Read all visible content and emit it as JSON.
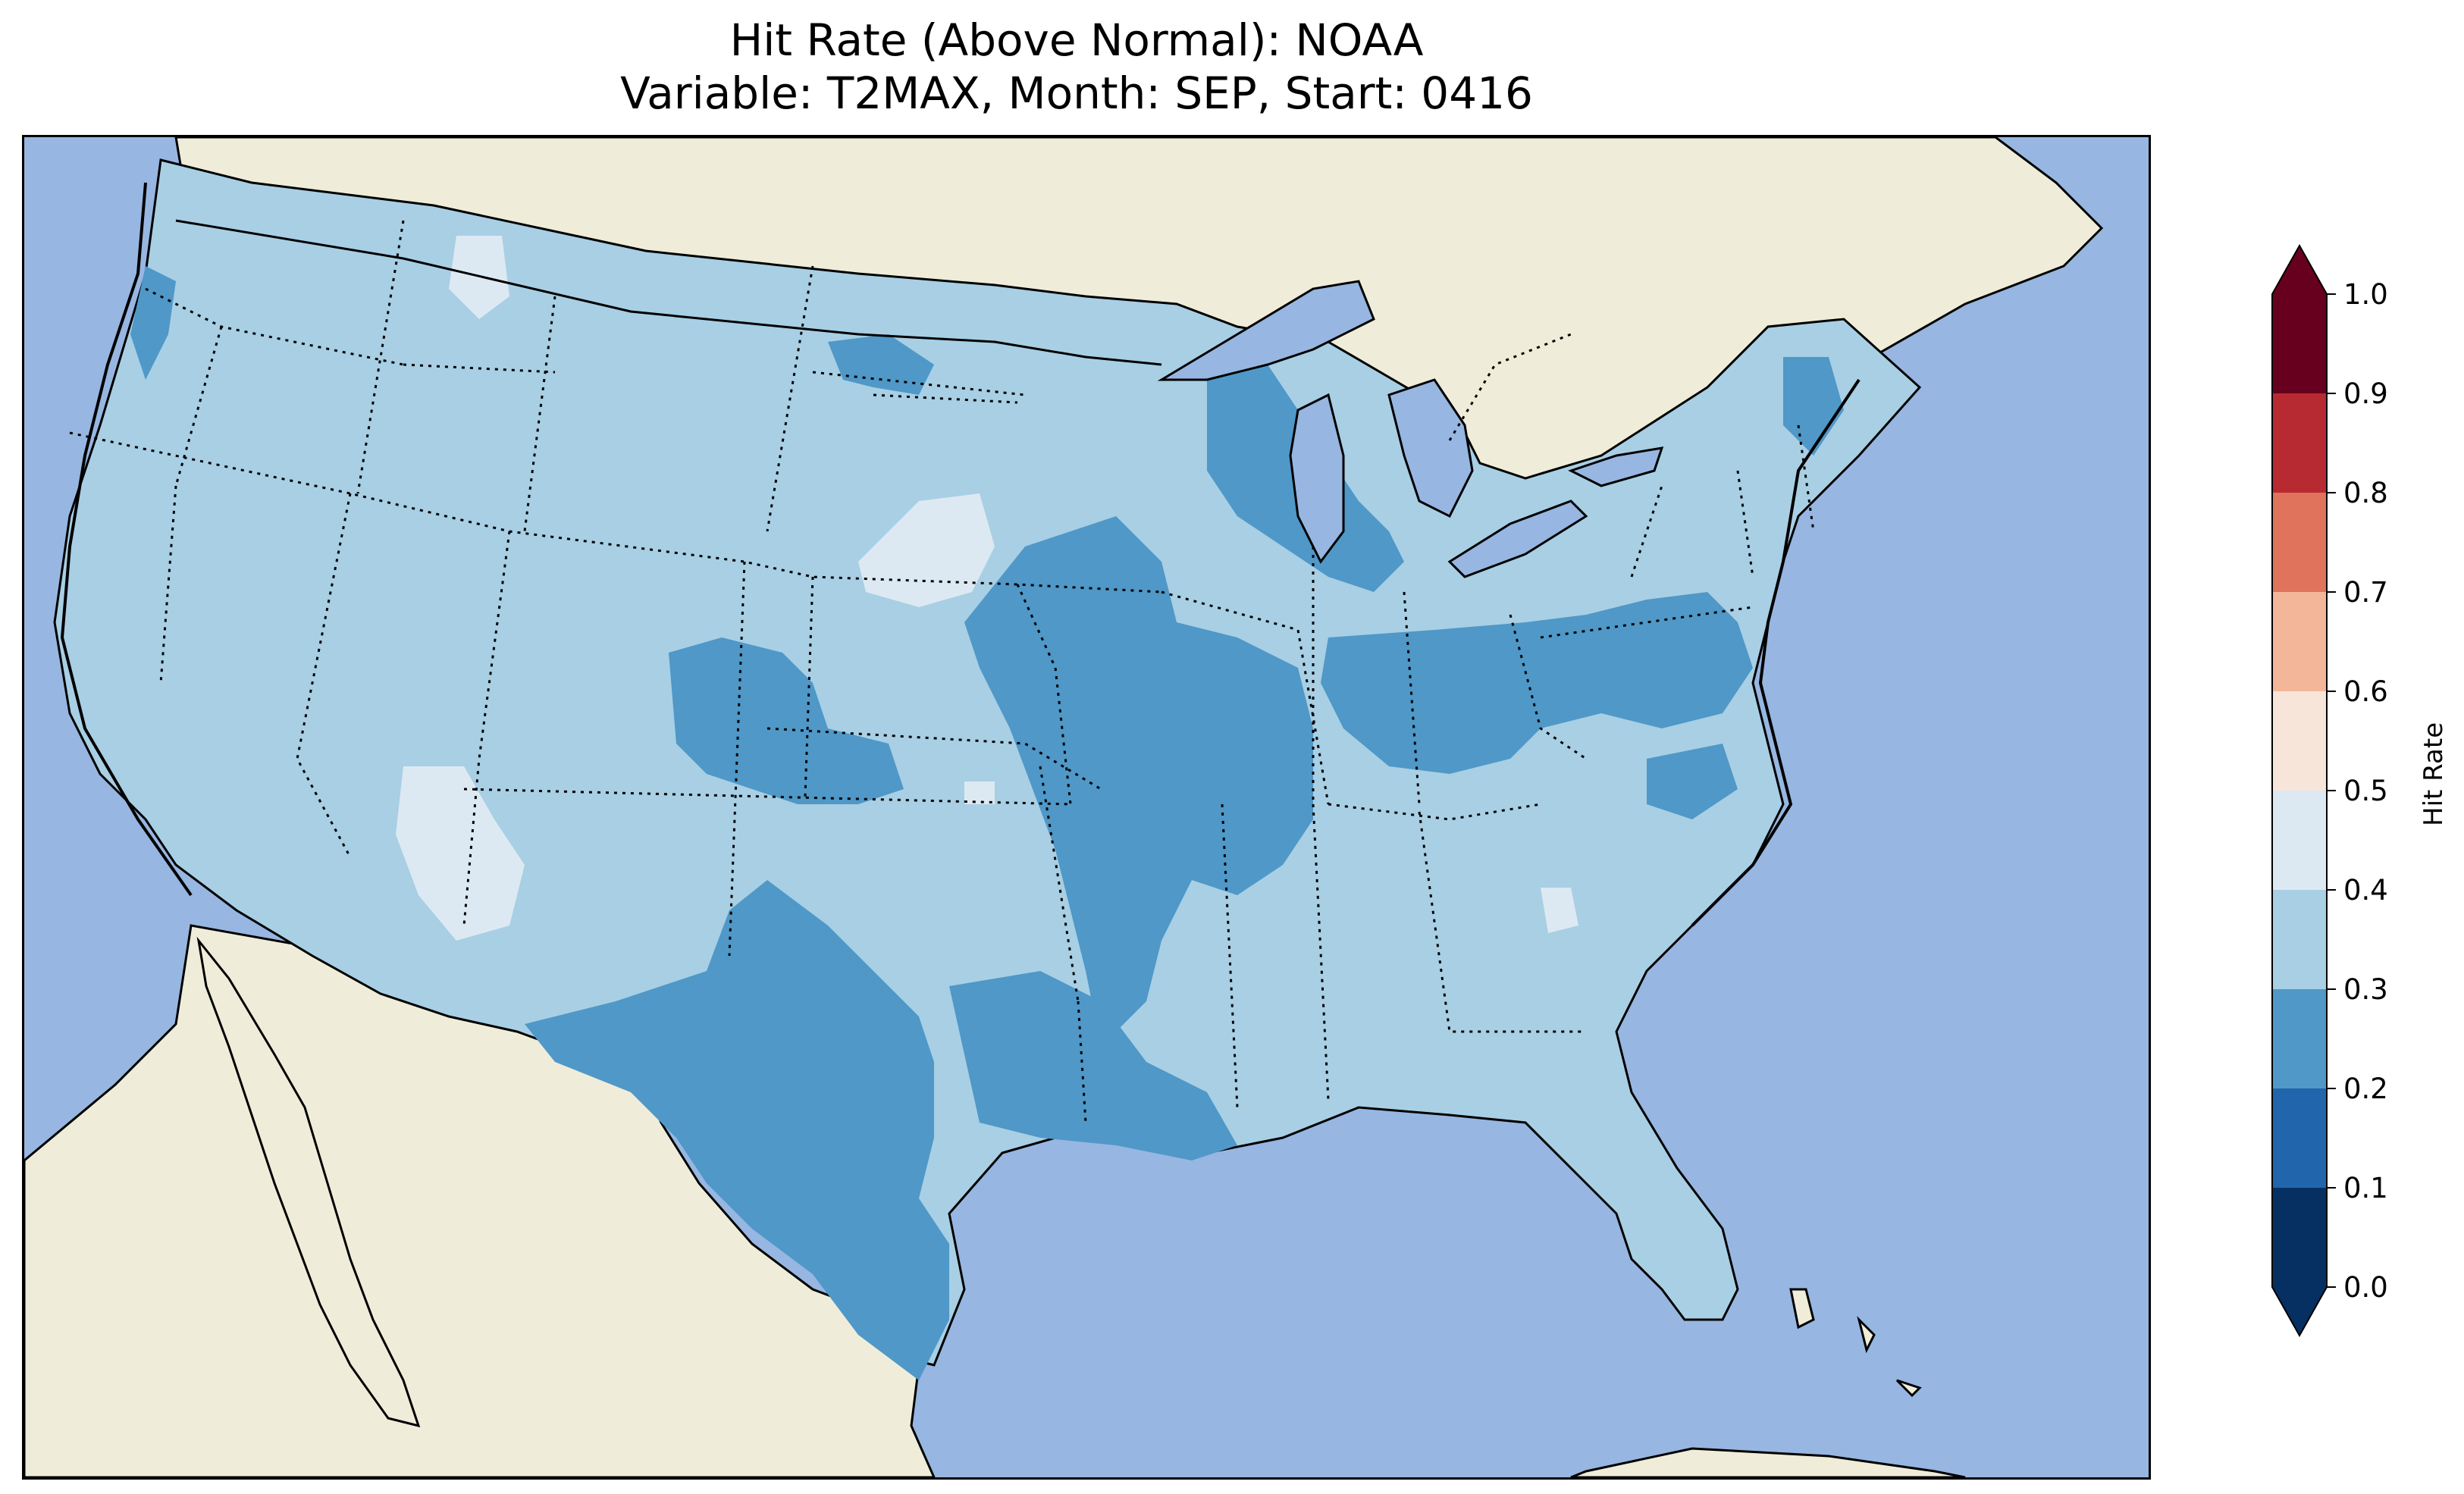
{
  "title_line_1": "Hit Rate (Above Normal): NOAA",
  "title_line_2": "Variable: T2MAX, Month: SEP, Start: 0416",
  "colors": {
    "ocean": "#97b6e1",
    "land": "#efedd9",
    "lakes": "#97b6e1",
    "border": "#000000"
  },
  "colorbar": {
    "label": "Hit Rate",
    "min": 0.0,
    "max": 1.0,
    "ticks": [
      "0.0",
      "0.1",
      "0.2",
      "0.3",
      "0.4",
      "0.5",
      "0.6",
      "0.7",
      "0.8",
      "0.9",
      "1.0"
    ],
    "bins": [
      {
        "range": [
          0.0,
          0.1
        ],
        "color": "#053061"
      },
      {
        "range": [
          0.1,
          0.2
        ],
        "color": "#2166ac"
      },
      {
        "range": [
          0.2,
          0.3
        ],
        "color": "#4f98c8"
      },
      {
        "range": [
          0.3,
          0.4
        ],
        "color": "#a8cfe4"
      },
      {
        "range": [
          0.4,
          0.5
        ],
        "color": "#dde9f2"
      },
      {
        "range": [
          0.5,
          0.6
        ],
        "color": "#f8e5da"
      },
      {
        "range": [
          0.6,
          0.7
        ],
        "color": "#f4b699"
      },
      {
        "range": [
          0.7,
          0.8
        ],
        "color": "#e0735c"
      },
      {
        "range": [
          0.8,
          0.9
        ],
        "color": "#b82a32"
      },
      {
        "range": [
          0.9,
          1.0
        ],
        "color": "#67001f"
      }
    ],
    "extend": "both"
  },
  "map_fields": {
    "base_value_bin": "0.3-0.4",
    "lower_bin": "0.2-0.3",
    "higher_bin": "0.4-0.5"
  }
}
